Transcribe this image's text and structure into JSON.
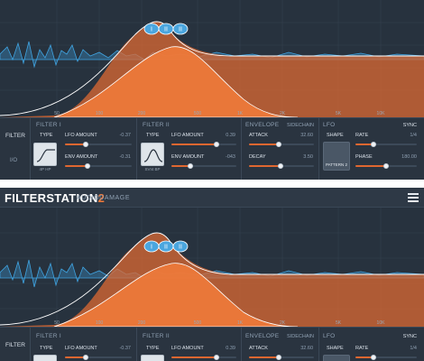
{
  "app": {
    "name": "FILTERSTATION",
    "version": "2",
    "brand": "AUDIODAMAGE"
  },
  "display": {
    "freq_labels": [
      "50",
      "100",
      "200",
      "500",
      "1K",
      "2K",
      "5K",
      "10K"
    ],
    "nodes": [
      "I",
      "II",
      "II"
    ]
  },
  "colors": {
    "accent": "#e06730",
    "background": "#26303b",
    "spectrum": "#3b9bd6"
  },
  "filter_section": {
    "title": "FILTER",
    "routing": "I/O"
  },
  "filter1": {
    "title": "FILTER I",
    "type_label": "TYPE",
    "type_value": "4P HP",
    "lfo_amount": {
      "label": "LFO AMOUNT",
      "value": "-0.37",
      "fraction": 0.31
    },
    "env_amount": {
      "label": "ENV AMOUNT",
      "value": "-0.31",
      "fraction": 0.34
    }
  },
  "filter2": {
    "title": "FILTER II",
    "type_label": "TYPE",
    "type_value": "SVI4 BP",
    "lfo_amount": {
      "label": "LFO AMOUNT",
      "value": "0.39",
      "fraction": 0.69
    },
    "env_amount": {
      "label": "ENV AMOUNT",
      "value": "-043",
      "fraction": 0.29
    }
  },
  "envelope": {
    "title": "ENVELOPE",
    "sidechain": "SIDECHAIN",
    "attack": {
      "label": "ATTACK",
      "value": "32.60",
      "fraction": 0.46
    },
    "decay": {
      "label": "DECAY",
      "value": "3.50",
      "fraction": 0.48
    }
  },
  "lfo": {
    "title": "LFO",
    "sync": "SYNC",
    "shape_label": "SHAPE",
    "shape_value": "PATTERN 2",
    "rate": {
      "label": "RATE",
      "value": "1/4",
      "fraction": 0.3
    },
    "phase": {
      "label": "PHASE",
      "value": "180.00",
      "fraction": 0.5
    }
  }
}
